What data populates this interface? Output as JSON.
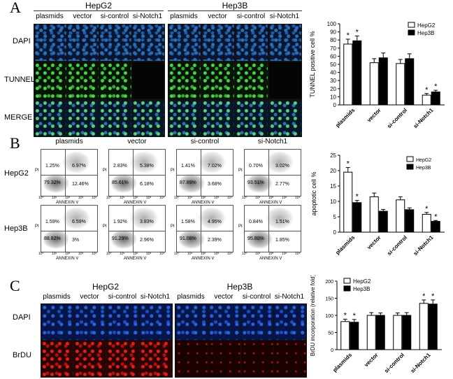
{
  "panelA": {
    "letter": "A",
    "group_headers": [
      "HepG2",
      "Hep3B"
    ],
    "col_labels": [
      "plasmids",
      "vector",
      "si-control",
      "si-Notch1",
      "plasmids",
      "vector",
      "si-control",
      "si-Notch1"
    ],
    "row_labels": [
      "DAPI",
      "TUNNEL",
      "MERGE"
    ]
  },
  "panelB": {
    "letter": "B",
    "col_labels": [
      "plasmids",
      "vector",
      "si-control",
      "si-Notch1"
    ],
    "row_labels": [
      "HepG2",
      "Hep3B"
    ],
    "axis_x": "ANNEXIN V",
    "axis_y": "PI",
    "tick_labels": [
      "10⁰",
      "10¹",
      "10²",
      "10³",
      "10⁴"
    ],
    "plots": [
      [
        "1.25%",
        "6.97%",
        "79.32%",
        "12.46%"
      ],
      [
        "2.83%",
        "5.38%",
        "85.61%",
        "6.18%"
      ],
      [
        "1.41%",
        "7.02%",
        "87.89%",
        "3.68%"
      ],
      [
        "0.70%",
        "3.02%",
        "93.51%",
        "2.77%"
      ],
      [
        "1.59%",
        "6.59%",
        "88.82%",
        "3%"
      ],
      [
        "1.92%",
        "3.83%",
        "91.29%",
        "2.96%"
      ],
      [
        "1.58%",
        "4.95%",
        "91.08%",
        "2.39%"
      ],
      [
        "0.84%",
        "1.51%",
        "95.80%",
        "1.85%"
      ]
    ]
  },
  "panelC": {
    "letter": "C",
    "group_headers": [
      "HepG2",
      "Hep3B"
    ],
    "col_labels": [
      "plasmids",
      "vector",
      "si-control",
      "si-Notch1",
      "plasmids",
      "vector",
      "si-control",
      "si-Notch1"
    ],
    "row_labels": [
      "DAPI",
      "BrDU"
    ]
  },
  "colors": {
    "hepg2": "#ffffff",
    "hep3b": "#000000"
  },
  "chart_data": [
    {
      "type": "bar",
      "categories": [
        "plasmids",
        "vector",
        "si-control",
        "si-Notch1"
      ],
      "series": [
        {
          "name": "HepG2",
          "values": [
            75,
            52,
            51,
            12
          ],
          "errors": [
            6,
            5,
            5,
            2
          ]
        },
        {
          "name": "Hep3B",
          "values": [
            79,
            58,
            57,
            16
          ],
          "errors": [
            6,
            6,
            6,
            2
          ]
        }
      ],
      "significant": [
        true,
        false,
        false,
        true
      ],
      "ylabel": "TUNNEL positive cell %",
      "ylim": [
        0,
        100
      ],
      "yticks": [
        0,
        10,
        20,
        30,
        40,
        50,
        60,
        70,
        80,
        90,
        100
      ],
      "legend": "top-right"
    },
    {
      "type": "bar",
      "categories": [
        "plasmids",
        "vector",
        "si-control",
        "si-Notch1"
      ],
      "series": [
        {
          "name": "HepG2",
          "values": [
            19.5,
            11.5,
            10.5,
            5.8
          ],
          "errors": [
            1.5,
            1.2,
            1.0,
            0.6
          ]
        },
        {
          "name": "Hep3B",
          "values": [
            9.6,
            6.8,
            7.3,
            3.5
          ],
          "errors": [
            0.7,
            0.6,
            0.6,
            0.3
          ]
        }
      ],
      "significant": [
        true,
        false,
        false,
        true
      ],
      "ylabel": "apoptotic cell %",
      "ylim": [
        0,
        25
      ],
      "yticks": [
        0,
        5,
        10,
        15,
        20,
        25
      ],
      "legend": "top-right"
    },
    {
      "type": "bar",
      "categories": [
        "plasmids",
        "vector",
        "si-control",
        "si-Notch1"
      ],
      "series": [
        {
          "name": "HepG2",
          "values": [
            82,
            100,
            100,
            135
          ],
          "errors": [
            7,
            8,
            7,
            10
          ]
        },
        {
          "name": "Hep3B",
          "values": [
            80,
            100,
            100,
            133
          ],
          "errors": [
            8,
            7,
            8,
            12
          ]
        }
      ],
      "significant": [
        true,
        false,
        false,
        true
      ],
      "ylabel": "BrDU incorporation (relative fold)",
      "ylim": [
        0,
        200
      ],
      "yticks": [
        0,
        50,
        100,
        150,
        200
      ],
      "legend": "top-left"
    }
  ]
}
